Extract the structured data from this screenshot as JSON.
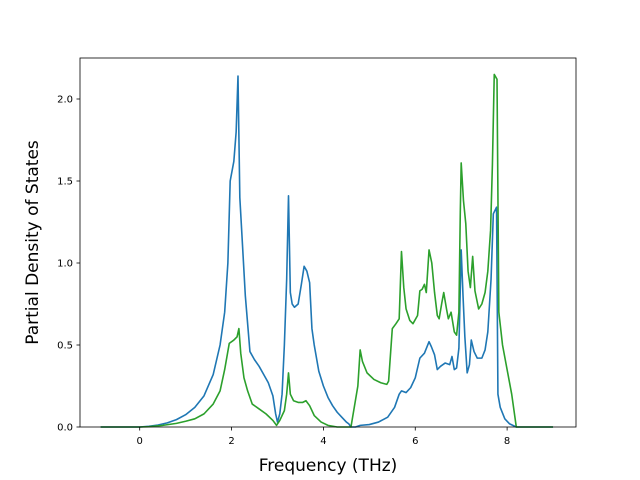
{
  "chart_data": {
    "type": "line",
    "title": "",
    "xlabel": "Frequency (THz)",
    "ylabel": "Partial Density of States",
    "xlim": [
      -1.3,
      9.5
    ],
    "ylim": [
      0.0,
      2.25
    ],
    "xticks": [
      0,
      2,
      4,
      6,
      8
    ],
    "xtick_labels": [
      "0",
      "2",
      "4",
      "6",
      "8"
    ],
    "yticks": [
      0.0,
      0.5,
      1.0,
      1.5,
      2.0
    ],
    "ytick_labels": [
      "0.0",
      "0.5",
      "1.0",
      "1.5",
      "2.0"
    ],
    "grid": false,
    "legend": "none",
    "series": [
      {
        "color": "#1f77b4",
        "points": [
          [
            -0.85,
            0.0
          ],
          [
            0.0,
            0.0
          ],
          [
            0.2,
            0.004
          ],
          [
            0.4,
            0.012
          ],
          [
            0.6,
            0.025
          ],
          [
            0.8,
            0.045
          ],
          [
            1.0,
            0.075
          ],
          [
            1.2,
            0.12
          ],
          [
            1.4,
            0.19
          ],
          [
            1.6,
            0.32
          ],
          [
            1.75,
            0.5
          ],
          [
            1.85,
            0.7
          ],
          [
            1.92,
            1.0
          ],
          [
            1.95,
            1.3
          ],
          [
            1.97,
            1.5
          ],
          [
            2.05,
            1.62
          ],
          [
            2.1,
            1.8
          ],
          [
            2.14,
            2.14
          ],
          [
            2.18,
            1.4
          ],
          [
            2.24,
            1.1
          ],
          [
            2.3,
            0.8
          ],
          [
            2.4,
            0.46
          ],
          [
            2.5,
            0.41
          ],
          [
            2.6,
            0.37
          ],
          [
            2.7,
            0.32
          ],
          [
            2.8,
            0.27
          ],
          [
            2.9,
            0.19
          ],
          [
            2.96,
            0.08
          ],
          [
            3.0,
            0.03
          ],
          [
            3.05,
            0.08
          ],
          [
            3.1,
            0.2
          ],
          [
            3.15,
            0.5
          ],
          [
            3.2,
            0.9
          ],
          [
            3.24,
            1.41
          ],
          [
            3.28,
            0.82
          ],
          [
            3.32,
            0.75
          ],
          [
            3.37,
            0.73
          ],
          [
            3.45,
            0.75
          ],
          [
            3.52,
            0.87
          ],
          [
            3.58,
            0.98
          ],
          [
            3.64,
            0.95
          ],
          [
            3.7,
            0.88
          ],
          [
            3.75,
            0.6
          ],
          [
            3.8,
            0.5
          ],
          [
            3.9,
            0.34
          ],
          [
            4.0,
            0.25
          ],
          [
            4.1,
            0.18
          ],
          [
            4.2,
            0.13
          ],
          [
            4.3,
            0.09
          ],
          [
            4.4,
            0.06
          ],
          [
            4.5,
            0.03
          ],
          [
            4.55,
            0.02
          ],
          [
            4.6,
            0.0
          ],
          [
            4.7,
            0.0
          ],
          [
            4.8,
            0.01
          ],
          [
            5.0,
            0.015
          ],
          [
            5.2,
            0.03
          ],
          [
            5.4,
            0.06
          ],
          [
            5.55,
            0.12
          ],
          [
            5.65,
            0.2
          ],
          [
            5.7,
            0.22
          ],
          [
            5.8,
            0.21
          ],
          [
            5.9,
            0.24
          ],
          [
            6.0,
            0.3
          ],
          [
            6.1,
            0.42
          ],
          [
            6.2,
            0.45
          ],
          [
            6.3,
            0.52
          ],
          [
            6.35,
            0.49
          ],
          [
            6.42,
            0.44
          ],
          [
            6.48,
            0.35
          ],
          [
            6.55,
            0.37
          ],
          [
            6.65,
            0.39
          ],
          [
            6.75,
            0.38
          ],
          [
            6.8,
            0.43
          ],
          [
            6.85,
            0.35
          ],
          [
            6.9,
            0.36
          ],
          [
            6.95,
            0.48
          ],
          [
            7.0,
            1.08
          ],
          [
            7.04,
            0.8
          ],
          [
            7.08,
            0.55
          ],
          [
            7.13,
            0.33
          ],
          [
            7.18,
            0.38
          ],
          [
            7.22,
            0.53
          ],
          [
            7.28,
            0.46
          ],
          [
            7.35,
            0.42
          ],
          [
            7.45,
            0.42
          ],
          [
            7.52,
            0.47
          ],
          [
            7.58,
            0.58
          ],
          [
            7.65,
            0.9
          ],
          [
            7.7,
            1.3
          ],
          [
            7.77,
            1.34
          ],
          [
            7.8,
            0.2
          ],
          [
            7.85,
            0.12
          ],
          [
            7.95,
            0.05
          ],
          [
            8.05,
            0.02
          ],
          [
            8.2,
            0.0
          ],
          [
            9.0,
            0.0
          ]
        ]
      },
      {
        "color": "#2ca02c",
        "points": [
          [
            -0.85,
            0.0
          ],
          [
            0.0,
            0.0
          ],
          [
            0.2,
            0.002
          ],
          [
            0.5,
            0.01
          ],
          [
            0.8,
            0.022
          ],
          [
            1.0,
            0.035
          ],
          [
            1.2,
            0.05
          ],
          [
            1.4,
            0.08
          ],
          [
            1.6,
            0.14
          ],
          [
            1.75,
            0.22
          ],
          [
            1.85,
            0.35
          ],
          [
            1.95,
            0.51
          ],
          [
            2.05,
            0.53
          ],
          [
            2.12,
            0.55
          ],
          [
            2.16,
            0.6
          ],
          [
            2.2,
            0.45
          ],
          [
            2.27,
            0.3
          ],
          [
            2.35,
            0.22
          ],
          [
            2.45,
            0.14
          ],
          [
            2.6,
            0.11
          ],
          [
            2.75,
            0.08
          ],
          [
            2.9,
            0.04
          ],
          [
            2.98,
            0.01
          ],
          [
            3.05,
            0.04
          ],
          [
            3.15,
            0.1
          ],
          [
            3.2,
            0.2
          ],
          [
            3.24,
            0.33
          ],
          [
            3.28,
            0.2
          ],
          [
            3.35,
            0.16
          ],
          [
            3.45,
            0.15
          ],
          [
            3.55,
            0.15
          ],
          [
            3.62,
            0.16
          ],
          [
            3.7,
            0.13
          ],
          [
            3.8,
            0.07
          ],
          [
            3.95,
            0.03
          ],
          [
            4.1,
            0.01
          ],
          [
            4.3,
            0.0
          ],
          [
            4.5,
            0.0
          ],
          [
            4.6,
            0.0
          ],
          [
            4.75,
            0.25
          ],
          [
            4.8,
            0.47
          ],
          [
            4.85,
            0.4
          ],
          [
            4.95,
            0.33
          ],
          [
            5.1,
            0.29
          ],
          [
            5.25,
            0.27
          ],
          [
            5.38,
            0.26
          ],
          [
            5.42,
            0.28
          ],
          [
            5.5,
            0.6
          ],
          [
            5.58,
            0.63
          ],
          [
            5.65,
            0.66
          ],
          [
            5.7,
            1.07
          ],
          [
            5.75,
            0.85
          ],
          [
            5.8,
            0.72
          ],
          [
            5.88,
            0.65
          ],
          [
            5.95,
            0.63
          ],
          [
            6.05,
            0.68
          ],
          [
            6.1,
            0.83
          ],
          [
            6.15,
            0.84
          ],
          [
            6.2,
            0.87
          ],
          [
            6.24,
            0.82
          ],
          [
            6.3,
            1.08
          ],
          [
            6.36,
            1.0
          ],
          [
            6.42,
            0.82
          ],
          [
            6.48,
            0.68
          ],
          [
            6.52,
            0.66
          ],
          [
            6.58,
            0.76
          ],
          [
            6.62,
            0.82
          ],
          [
            6.68,
            0.72
          ],
          [
            6.72,
            0.66
          ],
          [
            6.78,
            0.7
          ],
          [
            6.85,
            0.58
          ],
          [
            6.9,
            0.56
          ],
          [
            6.95,
            0.7
          ],
          [
            6.98,
            1.3
          ],
          [
            7.0,
            1.61
          ],
          [
            7.05,
            1.38
          ],
          [
            7.1,
            1.24
          ],
          [
            7.15,
            0.95
          ],
          [
            7.2,
            0.85
          ],
          [
            7.25,
            1.04
          ],
          [
            7.3,
            0.83
          ],
          [
            7.38,
            0.72
          ],
          [
            7.45,
            0.75
          ],
          [
            7.52,
            0.82
          ],
          [
            7.58,
            0.95
          ],
          [
            7.64,
            1.2
          ],
          [
            7.68,
            1.6
          ],
          [
            7.72,
            2.15
          ],
          [
            7.78,
            2.12
          ],
          [
            7.82,
            0.7
          ],
          [
            7.9,
            0.5
          ],
          [
            8.0,
            0.35
          ],
          [
            8.1,
            0.2
          ],
          [
            8.2,
            0.0
          ],
          [
            9.0,
            0.0
          ]
        ]
      }
    ]
  }
}
